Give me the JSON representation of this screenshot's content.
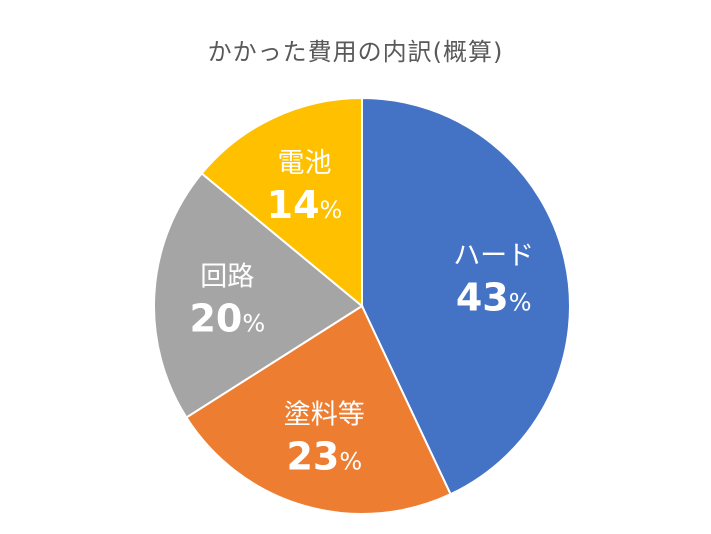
{
  "chart_data": {
    "type": "pie",
    "title": "かかった費用の内訳(概算)",
    "unit": "%",
    "slices": [
      {
        "label": "ハード",
        "value": 43,
        "color": "#4472C4"
      },
      {
        "label": "塗料等",
        "value": 23,
        "color": "#ED7D31"
      },
      {
        "label": "回路",
        "value": 20,
        "color": "#A5A5A5"
      },
      {
        "label": "電池",
        "value": 14,
        "color": "#FFC000"
      }
    ],
    "start_angle_deg": 0,
    "direction": "clockwise",
    "data_labels": "inside",
    "legend": "none"
  }
}
